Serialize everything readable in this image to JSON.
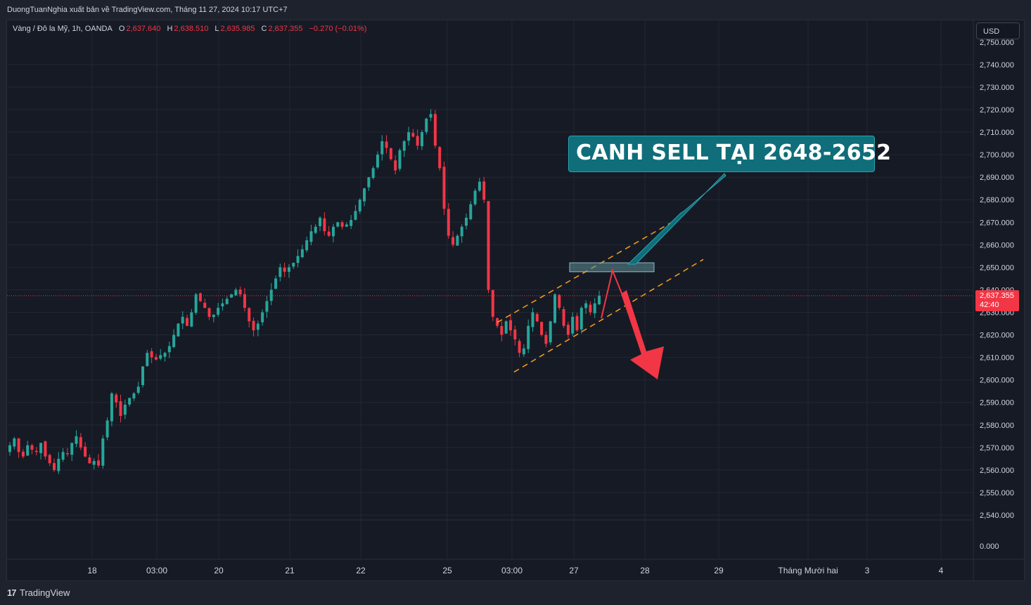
{
  "header": {
    "publish_text": "DuongTuanNghia xuất bản về TradingView.com, Tháng 11 27, 2024 10:17 UTC+7"
  },
  "legend": {
    "symbol": "Vàng / Đô la Mỹ, 1h, OANDA",
    "o_key": "O",
    "o_val": "2,637.640",
    "h_key": "H",
    "h_val": "2,638.510",
    "l_key": "L",
    "l_val": "2,635.985",
    "c_key": "C",
    "c_val": "2,637.355",
    "change": "−0.270 (−0.01%)"
  },
  "currency_button": "USD",
  "price_tag": {
    "price": "2,637.355",
    "countdown": "42:40"
  },
  "callout_text": "CANH SELL TẠI 2648-2652",
  "footer": {
    "logo_mark": "17",
    "brand": "TradingView"
  },
  "colors": {
    "up": "#26a69a",
    "down": "#f23645",
    "channel": "#f7a21b",
    "zone": "#5f8f98",
    "callout": "#0f6e7a",
    "arrow": "#f23645"
  },
  "chart_data": {
    "type": "candlestick",
    "title": "Vàng / Đô la Mỹ, 1h, OANDA",
    "y_ticks": [
      "2,750.000",
      "2,740.000",
      "2,730.000",
      "2,720.000",
      "2,710.000",
      "2,700.000",
      "2,690.000",
      "2,680.000",
      "2,670.000",
      "2,660.000",
      "2,650.000",
      "2,640.000",
      "2,630.000",
      "2,620.000",
      "2,610.000",
      "2,600.000",
      "2,590.000",
      "2,580.000",
      "2,570.000",
      "2,560.000",
      "2,550.000",
      "2,540.000"
    ],
    "ylim": [
      2537,
      2753
    ],
    "lower_pane_tick": "0.000",
    "x_ticks": [
      "18",
      "03:00",
      "20",
      "21",
      "22",
      "25",
      "03:00",
      "27",
      "28",
      "29",
      "Tháng Mười hai",
      "3",
      "4"
    ],
    "last_price": 2637.355,
    "sell_zone": [
      2648,
      2652
    ],
    "channel": {
      "upper": [
        [
          0,
          2625.5
        ],
        [
          1,
          2673
        ]
      ],
      "lower": [
        [
          0,
          2603.5
        ],
        [
          1,
          2653.5
        ]
      ]
    },
    "price_path": [
      2571,
      2574,
      2568,
      2566,
      2571,
      2569,
      2568,
      2572,
      2566,
      2563,
      2560,
      2565,
      2568,
      2567,
      2572,
      2575,
      2570,
      2566,
      2563,
      2564,
      2562,
      2574,
      2582,
      2594,
      2590,
      2584,
      2589,
      2592,
      2594,
      2597,
      2606,
      2612,
      2610,
      2609,
      2611,
      2612,
      2615,
      2620,
      2625,
      2628,
      2624,
      2630,
      2638,
      2635,
      2632,
      2628,
      2629,
      2632,
      2634,
      2636,
      2638,
      2640,
      2638,
      2632,
      2626,
      2622,
      2625,
      2630,
      2635,
      2640,
      2645,
      2650,
      2648,
      2650,
      2652,
      2655,
      2658,
      2662,
      2666,
      2668,
      2672,
      2666,
      2664,
      2668,
      2670,
      2668,
      2669,
      2671,
      2675,
      2680,
      2685,
      2690,
      2694,
      2700,
      2706,
      2703,
      2698,
      2693,
      2702,
      2706,
      2710,
      2708,
      2704,
      2710,
      2716,
      2718,
      2704,
      2694,
      2676,
      2664,
      2660,
      2664,
      2668,
      2672,
      2678,
      2684,
      2688,
      2680,
      2640,
      2628,
      2624,
      2620,
      2626,
      2622,
      2618,
      2612,
      2614,
      2624,
      2630,
      2626,
      2620,
      2616,
      2626,
      2638,
      2632,
      2624,
      2620,
      2628,
      2622,
      2632,
      2634,
      2630,
      2634,
      2637.4
    ]
  }
}
